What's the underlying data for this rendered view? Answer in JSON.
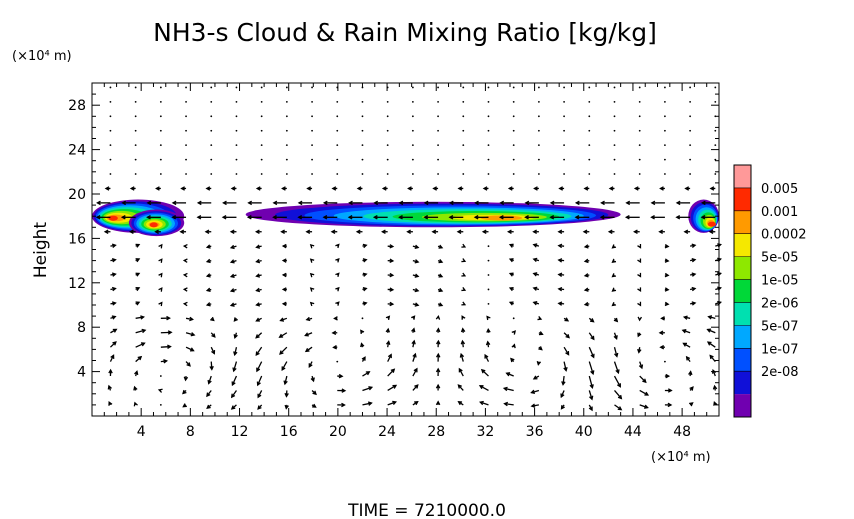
{
  "chart_data": {
    "type": "heatmap",
    "title": "NH3-s Cloud & Rain Mixing Ratio [kg/kg]",
    "ylabel": "Height",
    "y_unit": "(×10⁴ m)",
    "x_unit": "(×10⁴ m)",
    "xlim": [
      0,
      51
    ],
    "ylim": [
      0,
      30
    ],
    "x_ticks": [
      "4",
      "8",
      "12",
      "16",
      "20",
      "24",
      "28",
      "32",
      "36",
      "40",
      "44",
      "48"
    ],
    "y_ticks": [
      "4",
      "8",
      "12",
      "16",
      "20",
      "24",
      "28"
    ],
    "x_tick_values": [
      4,
      8,
      12,
      16,
      20,
      24,
      28,
      32,
      36,
      40,
      44,
      48
    ],
    "y_tick_values": [
      4,
      8,
      12,
      16,
      20,
      24,
      28
    ],
    "colorbar": {
      "labels": [
        "0.005",
        "0.001",
        "0.0002",
        "5e-05",
        "1e-05",
        "2e-06",
        "5e-07",
        "1e-07",
        "2e-08"
      ],
      "colors": [
        "#ff9999",
        "#ff2a00",
        "#ff9a00",
        "#f5e800",
        "#8ee800",
        "#00d838",
        "#00e0b0",
        "#00a8ff",
        "#0050ff",
        "#1010d8",
        "#7000b0"
      ]
    },
    "cloud_regions": [
      {
        "x": [
          0,
          7.5
        ],
        "y": [
          16.5,
          19.5
        ],
        "peak_x": 1.5,
        "peak_y": 17.8,
        "peak_level": "0.001"
      },
      {
        "x": [
          3,
          7.5
        ],
        "y": [
          16.2,
          18.6
        ],
        "peak_x": 5,
        "peak_y": 17.2,
        "peak_level": "0.001"
      },
      {
        "x": [
          12.5,
          43
        ],
        "y": [
          17,
          19.3
        ],
        "peak_x": 34,
        "peak_y": 17.8,
        "peak_level": "0.0002"
      },
      {
        "x": [
          48.5,
          51
        ],
        "y": [
          16.5,
          19.5
        ],
        "peak_x": 50.5,
        "peak_y": 17.2,
        "peak_level": "0.001"
      }
    ],
    "vector_field": "wind vectors on a regular grid; circulation cells below ~9, strong horizontal flow near 17–20",
    "time": "TIME = 7210000.0"
  },
  "footer": {
    "time_label": "TIME = 7210000.0"
  }
}
